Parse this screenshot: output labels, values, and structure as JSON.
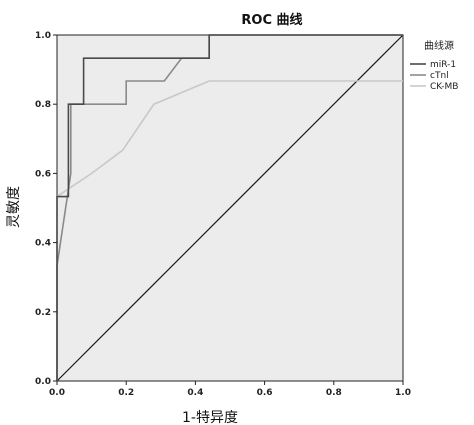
{
  "chart_data": {
    "type": "line",
    "title": "ROC 曲线",
    "xlabel": "1-特异度",
    "ylabel": "灵敏度",
    "xlim": [
      0,
      1
    ],
    "ylim": [
      0,
      1
    ],
    "x_ticks": [
      "0.0",
      "0.2",
      "0.4",
      "0.6",
      "0.8",
      "1.0"
    ],
    "y_ticks": [
      "0.0",
      "0.2",
      "0.4",
      "0.6",
      "0.8",
      "1.0"
    ],
    "grid": false,
    "legend": {
      "title": "曲线源",
      "position": "top-right"
    },
    "reference_line": {
      "x": [
        0,
        1
      ],
      "y": [
        0,
        1
      ],
      "color": "#1a1a1a"
    },
    "series": [
      {
        "name": "miR-1",
        "color": "#4a4a4a",
        "x": [
          0,
          0,
          0.033,
          0.033,
          0.077,
          0.077,
          0.44,
          0.44,
          0.64,
          0.64,
          1.0
        ],
        "y": [
          0,
          0.533,
          0.533,
          0.8,
          0.8,
          0.933,
          0.933,
          1.0,
          1.0,
          1.0,
          1.0
        ]
      },
      {
        "name": "cTnl",
        "color": "#8a8a8a",
        "x": [
          0,
          0,
          0.04,
          0.04,
          0.2,
          0.2,
          0.31,
          0.36,
          0.36,
          0.44,
          0.44,
          0.85,
          1.0
        ],
        "y": [
          0,
          0.333,
          0.6,
          0.8,
          0.8,
          0.867,
          0.867,
          0.933,
          0.933,
          0.933,
          1.0,
          1.0,
          1.0
        ]
      },
      {
        "name": "CK-MB",
        "color": "#c8c8c8",
        "x": [
          0,
          0,
          0.1,
          0.19,
          0.28,
          0.44,
          1.0
        ],
        "y": [
          0,
          0.533,
          0.6,
          0.667,
          0.8,
          0.867,
          0.867
        ]
      }
    ]
  },
  "colors": {
    "plot_background": "#ececec",
    "axis": "#222222"
  }
}
